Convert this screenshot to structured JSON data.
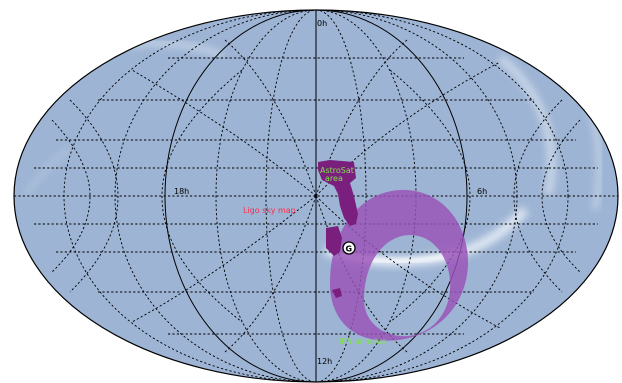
{
  "map": {
    "projection": "Mollweide (all-sky)",
    "background_color": "#9db4d4",
    "outline_color": "#000000",
    "milky_way_color": "#f2f6fb"
  },
  "grid_labels": {
    "top": "0h",
    "bottom": "12h",
    "left": "18h",
    "right": "6h"
  },
  "regions": {
    "astrosat": {
      "label_line1": "AstroSat",
      "label_line2": "area",
      "color": "#7b1f7e",
      "label_color": "#7fe34a"
    },
    "ligo": {
      "label": "Ligo sky map",
      "label_color": "#ff2a4a"
    },
    "ipn": {
      "label": "IPN annulus",
      "color": "#9a52b8",
      "label_color": "#7fe34a"
    },
    "marker": {
      "glyph": "G",
      "color": "#000000"
    }
  }
}
